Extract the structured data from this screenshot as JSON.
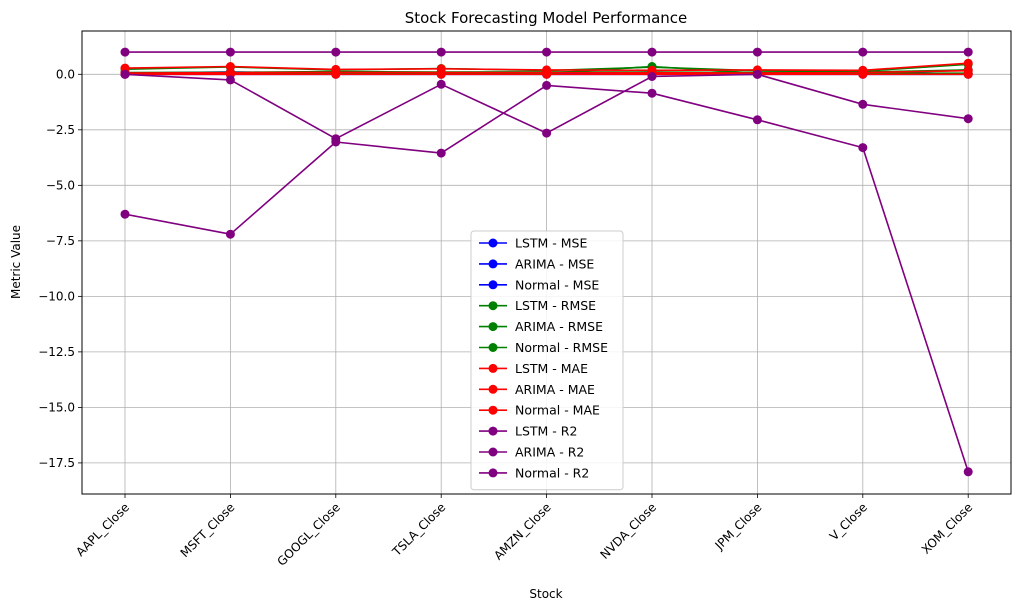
{
  "chart_data": {
    "type": "line",
    "title": "Stock Forecasting Model Performance",
    "xlabel": "Stock",
    "ylabel": "Metric Value",
    "categories": [
      "AAPL_Close",
      "MSFT_Close",
      "GOOGL_Close",
      "TSLA_Close",
      "AMZN_Close",
      "NVDA_Close",
      "JPM_Close",
      "V_Close",
      "XOM_Close"
    ],
    "ylim": [
      -18.9,
      1.95
    ],
    "yticks": [
      0.0,
      -2.5,
      -5.0,
      -7.5,
      -10.0,
      -12.5,
      -15.0,
      -17.5
    ],
    "ytick_labels": [
      "0.0",
      "−2.5",
      "−5.0",
      "−7.5",
      "−10.0",
      "−12.5",
      "−15.0",
      "−17.5"
    ],
    "grid": true,
    "legend_position": "lower-center",
    "series": [
      {
        "name": "LSTM - MSE",
        "color": "#0000ff",
        "values": [
          0.01,
          0.01,
          0.02,
          0.01,
          0.01,
          0.01,
          0.01,
          0.01,
          0.04
        ]
      },
      {
        "name": "ARIMA - MSE",
        "color": "#0000ff",
        "values": [
          0.05,
          0.11,
          0.04,
          0.07,
          0.03,
          0.1,
          0.02,
          0.02,
          0.2
        ]
      },
      {
        "name": "Normal - MSE",
        "color": "#0000ff",
        "values": [
          0.0,
          0.0,
          0.0,
          0.0,
          0.0,
          0.0,
          0.0,
          0.0,
          0.0
        ]
      },
      {
        "name": "LSTM - RMSE",
        "color": "#008000",
        "values": [
          0.08,
          0.09,
          0.12,
          0.1,
          0.11,
          0.1,
          0.08,
          0.1,
          0.2
        ]
      },
      {
        "name": "ARIMA - RMSE",
        "color": "#008000",
        "values": [
          0.23,
          0.33,
          0.2,
          0.26,
          0.17,
          0.32,
          0.16,
          0.14,
          0.45
        ]
      },
      {
        "name": "Normal - RMSE",
        "color": "#008000",
        "values": [
          0.05,
          0.05,
          0.05,
          0.05,
          0.05,
          0.35,
          0.05,
          0.05,
          0.05
        ]
      },
      {
        "name": "LSTM - MAE",
        "color": "#ff0000",
        "values": [
          0.06,
          0.07,
          0.09,
          0.08,
          0.08,
          0.07,
          0.06,
          0.08,
          0.16
        ]
      },
      {
        "name": "ARIMA - MAE",
        "color": "#ff0000",
        "values": [
          0.28,
          0.35,
          0.22,
          0.25,
          0.2,
          0.18,
          0.2,
          0.18,
          0.5
        ]
      },
      {
        "name": "Normal - MAE",
        "color": "#ff0000",
        "values": [
          0.0,
          0.0,
          0.0,
          0.0,
          0.0,
          0.0,
          0.0,
          0.0,
          0.0
        ]
      },
      {
        "name": "LSTM - R2",
        "color": "#800080",
        "values": [
          1.0,
          1.0,
          1.0,
          1.0,
          1.0,
          1.0,
          1.0,
          1.0,
          1.0
        ]
      },
      {
        "name": "ARIMA - R2",
        "color": "#800080",
        "values": [
          0.0,
          -0.25,
          -2.9,
          -0.45,
          -2.65,
          -0.1,
          0.0,
          -1.35,
          -2.0
        ]
      },
      {
        "name": "Normal - R2",
        "color": "#800080",
        "values": [
          -6.3,
          -7.2,
          -3.05,
          -3.55,
          -0.5,
          -0.85,
          -2.05,
          -3.3,
          -17.9
        ]
      }
    ]
  }
}
